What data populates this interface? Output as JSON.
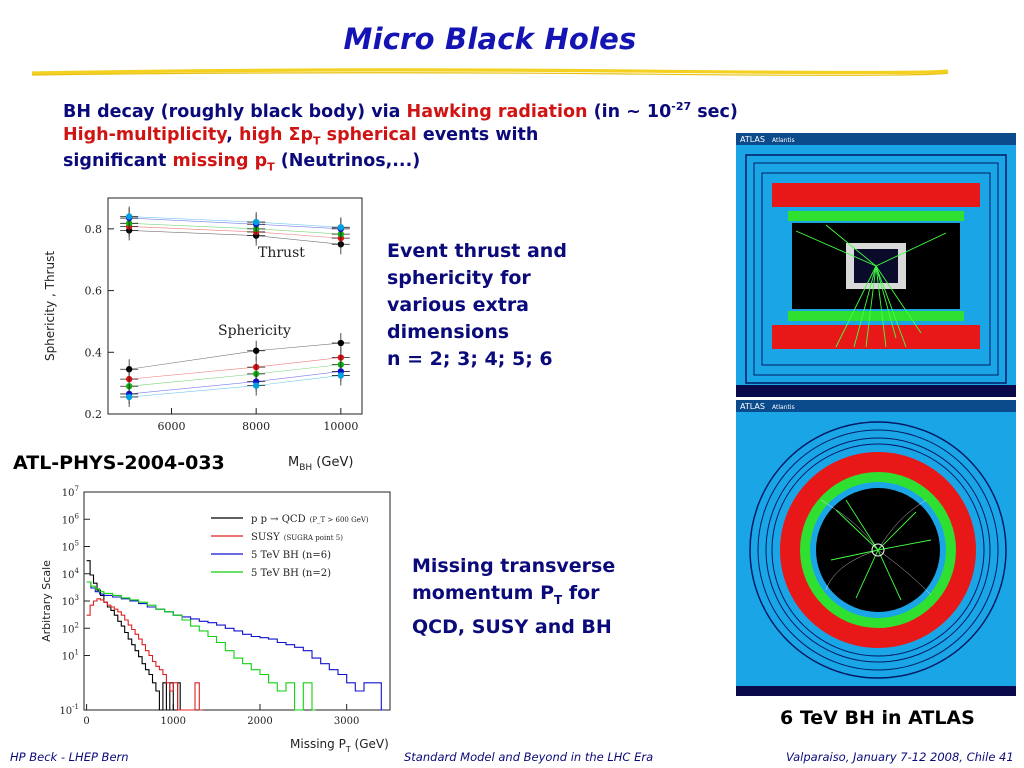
{
  "slide": {
    "title": "Micro Black Holes",
    "bullet1": {
      "p1": "BH decay (roughly black body) via ",
      "p2": "Hawking radiation",
      "p3": " (in ~ 10",
      "p4": "-27",
      "p5": " sec)"
    },
    "bullet2": {
      "p1": "High-multiplicity",
      "p2": ", ",
      "p3": "high Σp",
      "p4": "T",
      "p5": " spherical",
      "p6": " events with"
    },
    "bullet3": {
      "p1": "significant ",
      "p2": "missing p",
      "p3": "T",
      "p4": " (Neutrinos,...)"
    },
    "caption_thrust": [
      "Event thrust and",
      "sphericity for",
      "various extra",
      "dimensions",
      "n = 2; 3; 4; 5; 6"
    ],
    "caption_missing": {
      "l1": "Missing transverse",
      "l2a": "momentum P",
      "l2b": "T",
      "l2c": " for",
      "l3": "QCD, SUSY and BH"
    },
    "ref_label": "ATL-PHYS-2004-033",
    "atlas_caption": "6 TeV BH in ATLAS",
    "atlas_tag": "ATLAS",
    "atlas_sub": "Atlantis",
    "footer_left": "HP Beck - LHEP Bern",
    "footer_center": "Standard Model and Beyond in the LHC Era",
    "footer_right": "Valparaiso, January 7-12 2008, Chile  41"
  },
  "chart_data": [
    {
      "type": "scatter",
      "xlabel_main": "M",
      "xlabel_sub": "BH",
      "xlabel_unit": " (GeV)",
      "ylabel": "Sphericity ,  Thrust",
      "xlim": [
        4500,
        10500
      ],
      "ylim": [
        0.2,
        0.9
      ],
      "xticks": [
        6000,
        8000,
        10000
      ],
      "yticks": [
        0.2,
        0.4,
        0.6,
        0.8
      ],
      "x": [
        5000,
        8000,
        10000
      ],
      "annotations": [
        "Thrust",
        "Sphericity"
      ],
      "series_colors": [
        "#000000",
        "#e01010",
        "#10b010",
        "#1010e0",
        "#00a0e0"
      ],
      "thrust": [
        [
          0.795,
          0.778,
          0.75
        ],
        [
          0.808,
          0.79,
          0.77
        ],
        [
          0.818,
          0.8,
          0.783
        ],
        [
          0.835,
          0.815,
          0.8
        ],
        [
          0.84,
          0.822,
          0.805
        ]
      ],
      "sphericity": [
        [
          0.345,
          0.405,
          0.43
        ],
        [
          0.313,
          0.352,
          0.383
        ],
        [
          0.29,
          0.33,
          0.36
        ],
        [
          0.265,
          0.305,
          0.338
        ],
        [
          0.255,
          0.292,
          0.325
        ]
      ]
    },
    {
      "type": "line",
      "xlabel_main": "Missing P",
      "xlabel_sub": "T",
      "xlabel_unit": " (GeV)",
      "ylabel": "Arbitrary Scale",
      "log_y": true,
      "xlim": [
        -30,
        3500
      ],
      "ylim_exp": [
        -1,
        7
      ],
      "xticks": [
        0,
        1000,
        2000,
        3000
      ],
      "yticks_exp": [
        -1,
        1,
        2,
        3,
        4,
        5,
        6,
        7
      ],
      "series": [
        {
          "name": "p p → QCD",
          "note": "(P_T > 600 GeV)",
          "color": "#000000",
          "points": [
            [
              0,
              30000
            ],
            [
              40,
              9000
            ],
            [
              80,
              4500
            ],
            [
              120,
              2500
            ],
            [
              160,
              1600
            ],
            [
              200,
              900
            ],
            [
              240,
              600
            ],
            [
              280,
              450
            ],
            [
              320,
              300
            ],
            [
              360,
              180
            ],
            [
              400,
              120
            ],
            [
              440,
              70
            ],
            [
              480,
              40
            ],
            [
              520,
              25
            ],
            [
              560,
              15
            ],
            [
              600,
              9
            ],
            [
              640,
              5
            ],
            [
              680,
              3
            ],
            [
              720,
              2
            ],
            [
              760,
              1
            ],
            [
              800,
              0.5
            ],
            [
              840,
              0.1
            ],
            [
              880,
              1
            ],
            [
              920,
              0.1
            ],
            [
              960,
              1
            ],
            [
              1000,
              0.1
            ],
            [
              1050,
              1
            ],
            [
              1080,
              0.1
            ]
          ]
        },
        {
          "name": "SUSY",
          "note": "(SUGRA point 5)",
          "color": "#e02020",
          "points": [
            [
              0,
              300
            ],
            [
              40,
              700
            ],
            [
              80,
              1000
            ],
            [
              120,
              1200
            ],
            [
              160,
              1100
            ],
            [
              200,
              900
            ],
            [
              240,
              700
            ],
            [
              280,
              600
            ],
            [
              320,
              500
            ],
            [
              360,
              400
            ],
            [
              400,
              300
            ],
            [
              440,
              200
            ],
            [
              480,
              130
            ],
            [
              520,
              90
            ],
            [
              560,
              60
            ],
            [
              600,
              40
            ],
            [
              640,
              25
            ],
            [
              680,
              15
            ],
            [
              720,
              10
            ],
            [
              760,
              6
            ],
            [
              800,
              4
            ],
            [
              840,
              3
            ],
            [
              880,
              2
            ],
            [
              920,
              1
            ],
            [
              960,
              0.5
            ],
            [
              1000,
              1
            ],
            [
              1050,
              0.1
            ],
            [
              1250,
              1
            ],
            [
              1300,
              0.1
            ]
          ]
        },
        {
          "name": "5 TeV BH (n=6)",
          "note": "",
          "color": "#1010d0",
          "points": [
            [
              0,
              5000
            ],
            [
              50,
              3000
            ],
            [
              100,
              2200
            ],
            [
              150,
              1800
            ],
            [
              200,
              1600
            ],
            [
              300,
              1400
            ],
            [
              400,
              1200
            ],
            [
              500,
              1000
            ],
            [
              600,
              800
            ],
            [
              700,
              600
            ],
            [
              800,
              500
            ],
            [
              900,
              400
            ],
            [
              1000,
              300
            ],
            [
              1100,
              260
            ],
            [
              1200,
              220
            ],
            [
              1300,
              180
            ],
            [
              1400,
              160
            ],
            [
              1500,
              130
            ],
            [
              1600,
              100
            ],
            [
              1700,
              80
            ],
            [
              1800,
              60
            ],
            [
              1900,
              50
            ],
            [
              2000,
              45
            ],
            [
              2100,
              40
            ],
            [
              2200,
              30
            ],
            [
              2300,
              25
            ],
            [
              2400,
              20
            ],
            [
              2500,
              15
            ],
            [
              2600,
              8
            ],
            [
              2700,
              5
            ],
            [
              2800,
              3
            ],
            [
              2900,
              2
            ],
            [
              3000,
              1
            ],
            [
              3100,
              0.5
            ],
            [
              3200,
              1
            ],
            [
              3300,
              1
            ],
            [
              3400,
              0.1
            ]
          ]
        },
        {
          "name": "5 TeV BH (n=2)",
          "note": "",
          "color": "#10d010",
          "points": [
            [
              0,
              5000
            ],
            [
              50,
              3500
            ],
            [
              100,
              2800
            ],
            [
              150,
              2200
            ],
            [
              200,
              1900
            ],
            [
              300,
              1600
            ],
            [
              400,
              1300
            ],
            [
              500,
              1100
            ],
            [
              600,
              900
            ],
            [
              700,
              700
            ],
            [
              800,
              500
            ],
            [
              900,
              400
            ],
            [
              1000,
              300
            ],
            [
              1100,
              200
            ],
            [
              1200,
              120
            ],
            [
              1300,
              80
            ],
            [
              1400,
              50
            ],
            [
              1500,
              30
            ],
            [
              1600,
              15
            ],
            [
              1700,
              8
            ],
            [
              1800,
              5
            ],
            [
              1900,
              3
            ],
            [
              2000,
              2
            ],
            [
              2100,
              1
            ],
            [
              2200,
              0.5
            ],
            [
              2300,
              1
            ],
            [
              2400,
              0.1
            ],
            [
              2500,
              1
            ],
            [
              2600,
              0.1
            ]
          ]
        }
      ]
    }
  ]
}
